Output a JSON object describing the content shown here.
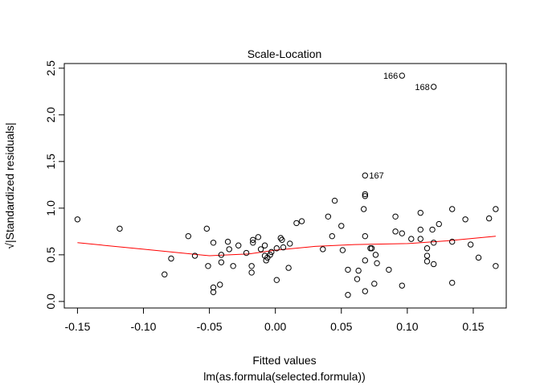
{
  "chart_data": {
    "type": "scatter",
    "title": "Scale-Location",
    "xlabel": "Fitted values",
    "xlabel_sub": "lm(as.formula(selected.formula))",
    "ylabel": "√|Standardized residuals|",
    "xlim": [
      -0.16,
      0.175
    ],
    "ylim": [
      -0.07,
      2.55
    ],
    "xticks": [
      -0.15,
      -0.1,
      -0.05,
      0.0,
      0.05,
      0.1,
      0.15
    ],
    "xtick_labels": [
      "-0.15",
      "-0.10",
      "-0.05",
      "0.00",
      "0.05",
      "0.10",
      "0.15"
    ],
    "yticks": [
      0.0,
      0.5,
      1.0,
      1.5,
      2.0,
      2.5
    ],
    "ytick_labels": [
      "0.0",
      "0.5",
      "1.0",
      "1.5",
      "2.0",
      "2.5"
    ],
    "grid": false,
    "point_color": "#000000",
    "smooth_color": "#ff0000",
    "points": [
      {
        "x": -0.15,
        "y": 0.88
      },
      {
        "x": -0.118,
        "y": 0.78
      },
      {
        "x": -0.084,
        "y": 0.29
      },
      {
        "x": -0.079,
        "y": 0.46
      },
      {
        "x": -0.066,
        "y": 0.7
      },
      {
        "x": -0.061,
        "y": 0.49
      },
      {
        "x": -0.052,
        "y": 0.78
      },
      {
        "x": -0.051,
        "y": 0.38
      },
      {
        "x": -0.047,
        "y": 0.63
      },
      {
        "x": -0.047,
        "y": 0.15
      },
      {
        "x": -0.047,
        "y": 0.1
      },
      {
        "x": -0.042,
        "y": 0.18
      },
      {
        "x": -0.041,
        "y": 0.42
      },
      {
        "x": -0.041,
        "y": 0.5
      },
      {
        "x": -0.036,
        "y": 0.64
      },
      {
        "x": -0.035,
        "y": 0.56
      },
      {
        "x": -0.032,
        "y": 0.38
      },
      {
        "x": -0.028,
        "y": 0.6
      },
      {
        "x": -0.022,
        "y": 0.52
      },
      {
        "x": -0.018,
        "y": 0.31
      },
      {
        "x": -0.018,
        "y": 0.38
      },
      {
        "x": -0.017,
        "y": 0.63
      },
      {
        "x": -0.017,
        "y": 0.66
      },
      {
        "x": -0.013,
        "y": 0.69
      },
      {
        "x": -0.011,
        "y": 0.56
      },
      {
        "x": -0.008,
        "y": 0.6
      },
      {
        "x": -0.008,
        "y": 0.49
      },
      {
        "x": -0.007,
        "y": 0.44
      },
      {
        "x": -0.006,
        "y": 0.47
      },
      {
        "x": -0.004,
        "y": 0.5
      },
      {
        "x": -0.003,
        "y": 0.53
      },
      {
        "x": 0.001,
        "y": 0.57
      },
      {
        "x": 0.001,
        "y": 0.23
      },
      {
        "x": 0.004,
        "y": 0.68
      },
      {
        "x": 0.005,
        "y": 0.66
      },
      {
        "x": 0.006,
        "y": 0.58
      },
      {
        "x": 0.01,
        "y": 0.36
      },
      {
        "x": 0.011,
        "y": 0.62
      },
      {
        "x": 0.016,
        "y": 0.84
      },
      {
        "x": 0.02,
        "y": 0.86
      },
      {
        "x": 0.036,
        "y": 0.56
      },
      {
        "x": 0.04,
        "y": 0.91
      },
      {
        "x": 0.043,
        "y": 0.7
      },
      {
        "x": 0.045,
        "y": 1.08
      },
      {
        "x": 0.05,
        "y": 0.81
      },
      {
        "x": 0.051,
        "y": 0.55
      },
      {
        "x": 0.055,
        "y": 0.34
      },
      {
        "x": 0.055,
        "y": 0.07
      },
      {
        "x": 0.062,
        "y": 0.24
      },
      {
        "x": 0.063,
        "y": 0.33
      },
      {
        "x": 0.067,
        "y": 0.99
      },
      {
        "x": 0.068,
        "y": 1.13
      },
      {
        "x": 0.068,
        "y": 1.15
      },
      {
        "x": 0.068,
        "y": 0.7
      },
      {
        "x": 0.068,
        "y": 0.44
      },
      {
        "x": 0.068,
        "y": 0.11
      },
      {
        "x": 0.072,
        "y": 0.57
      },
      {
        "x": 0.073,
        "y": 0.57
      },
      {
        "x": 0.075,
        "y": 0.19
      },
      {
        "x": 0.076,
        "y": 0.5
      },
      {
        "x": 0.077,
        "y": 0.41
      },
      {
        "x": 0.086,
        "y": 0.34
      },
      {
        "x": 0.091,
        "y": 0.91
      },
      {
        "x": 0.091,
        "y": 0.75
      },
      {
        "x": 0.096,
        "y": 0.73
      },
      {
        "x": 0.096,
        "y": 0.17
      },
      {
        "x": 0.103,
        "y": 0.67
      },
      {
        "x": 0.11,
        "y": 0.95
      },
      {
        "x": 0.11,
        "y": 0.77
      },
      {
        "x": 0.11,
        "y": 0.67
      },
      {
        "x": 0.115,
        "y": 0.57
      },
      {
        "x": 0.115,
        "y": 0.49
      },
      {
        "x": 0.115,
        "y": 0.43
      },
      {
        "x": 0.119,
        "y": 0.77
      },
      {
        "x": 0.12,
        "y": 0.63
      },
      {
        "x": 0.12,
        "y": 0.4
      },
      {
        "x": 0.124,
        "y": 0.83
      },
      {
        "x": 0.134,
        "y": 0.99
      },
      {
        "x": 0.134,
        "y": 0.64
      },
      {
        "x": 0.134,
        "y": 0.2
      },
      {
        "x": 0.144,
        "y": 0.88
      },
      {
        "x": 0.148,
        "y": 0.61
      },
      {
        "x": 0.154,
        "y": 0.47
      },
      {
        "x": 0.162,
        "y": 0.89
      },
      {
        "x": 0.167,
        "y": 0.99
      },
      {
        "x": 0.167,
        "y": 0.38
      },
      {
        "x": 0.068,
        "y": 1.35,
        "label": "167"
      },
      {
        "x": 0.096,
        "y": 2.42,
        "label": "166"
      },
      {
        "x": 0.12,
        "y": 2.3,
        "label": "168"
      }
    ],
    "smooth_line": {
      "x": [
        -0.15,
        -0.1,
        -0.05,
        -0.02,
        0.0,
        0.03,
        0.06,
        0.1,
        0.13,
        0.167
      ],
      "y": [
        0.63,
        0.56,
        0.49,
        0.51,
        0.55,
        0.59,
        0.61,
        0.62,
        0.65,
        0.7
      ]
    }
  }
}
